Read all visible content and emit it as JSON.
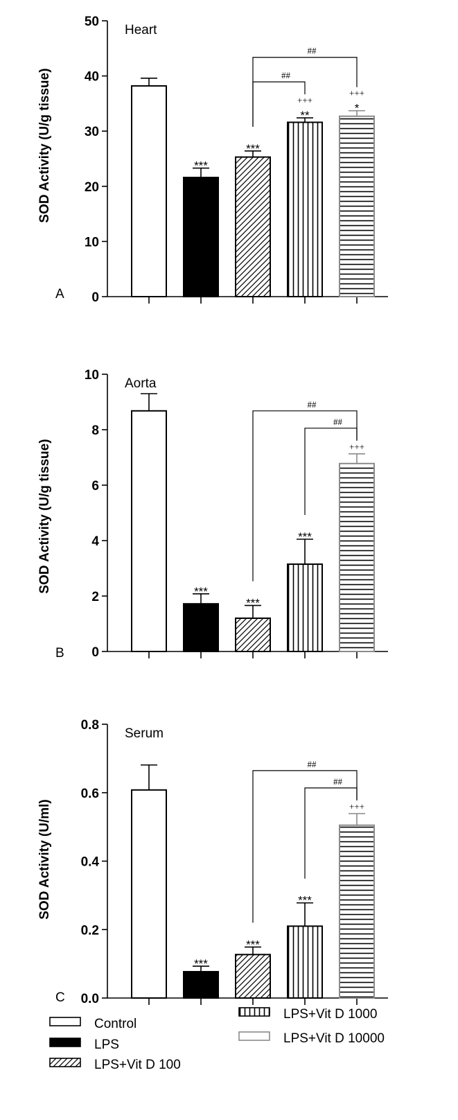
{
  "colors": {
    "axis": "#000000",
    "black_bar": "#000000",
    "gray_bar": "#8a8a8a"
  },
  "legend": [
    {
      "label": "Control",
      "pattern": "open"
    },
    {
      "label": "LPS",
      "pattern": "solid"
    },
    {
      "label": "LPS+Vit D 100",
      "pattern": "diagonal"
    },
    {
      "label": "LPS+Vit D 1000",
      "pattern": "vertical"
    },
    {
      "label": "LPS+Vit D 10000",
      "pattern": "horizontal-gray"
    }
  ],
  "chart_data": [
    {
      "type": "bar",
      "panel": "A",
      "title": "Heart",
      "ylabel": "SOD Activity (U/g tissue)",
      "ylim": [
        0,
        50
      ],
      "yticks": [
        "0",
        "10",
        "20",
        "30",
        "40",
        "50"
      ],
      "categories": [
        "Control",
        "LPS",
        "LPS+Vit D 100",
        "LPS+Vit D 1000",
        "LPS+Vit D 10000"
      ],
      "values": [
        38.2,
        21.6,
        25.3,
        31.6,
        32.7
      ],
      "errors": [
        1.4,
        1.7,
        1.1,
        0.8,
        1.0
      ],
      "annotations": [
        {
          "bar": 1,
          "lines": [
            "***"
          ]
        },
        {
          "bar": 2,
          "lines": [
            "***"
          ]
        },
        {
          "bar": 3,
          "lines": [
            "+++",
            "**"
          ]
        },
        {
          "bar": 4,
          "lines": [
            "+++",
            "*"
          ]
        }
      ],
      "brackets": [
        {
          "from": 2,
          "to": 3,
          "label": "##"
        },
        {
          "from": 2,
          "to": 4,
          "label": "##"
        }
      ]
    },
    {
      "type": "bar",
      "panel": "B",
      "title": "Aorta",
      "ylabel": "SOD Activity (U/g tissue)",
      "ylim": [
        0,
        10
      ],
      "yticks": [
        "0",
        "2",
        "4",
        "6",
        "8",
        "10"
      ],
      "categories": [
        "Control",
        "LPS",
        "LPS+Vit D 100",
        "LPS+Vit D 1000",
        "LPS+Vit D 10000"
      ],
      "values": [
        8.68,
        1.72,
        1.2,
        3.15,
        6.78
      ],
      "errors": [
        0.62,
        0.36,
        0.46,
        0.9,
        0.35
      ],
      "annotations": [
        {
          "bar": 1,
          "lines": [
            "***"
          ]
        },
        {
          "bar": 2,
          "lines": [
            "***"
          ]
        },
        {
          "bar": 3,
          "lines": [
            "***"
          ]
        },
        {
          "bar": 4,
          "lines": [
            "+++"
          ]
        }
      ],
      "brackets": [
        {
          "from": 3,
          "to": 4,
          "label": "##"
        },
        {
          "from": 2,
          "to": 4,
          "label": "##"
        }
      ]
    },
    {
      "type": "bar",
      "panel": "C",
      "title": "Serum",
      "ylabel": "SOD Activity (U/ml)",
      "ylim": [
        0,
        0.8
      ],
      "yticks": [
        "0.0",
        "0.2",
        "0.4",
        "0.6",
        "0.8"
      ],
      "categories": [
        "Control",
        "LPS",
        "LPS+Vit D 100",
        "LPS+Vit D 1000",
        "LPS+Vit D 10000"
      ],
      "values": [
        0.608,
        0.077,
        0.127,
        0.21,
        0.505
      ],
      "errors": [
        0.073,
        0.016,
        0.022,
        0.068,
        0.034
      ],
      "annotations": [
        {
          "bar": 1,
          "lines": [
            "***"
          ]
        },
        {
          "bar": 2,
          "lines": [
            "***"
          ]
        },
        {
          "bar": 3,
          "lines": [
            "***"
          ]
        },
        {
          "bar": 4,
          "lines": [
            "+++"
          ]
        }
      ],
      "brackets": [
        {
          "from": 3,
          "to": 4,
          "label": "##"
        },
        {
          "from": 2,
          "to": 4,
          "label": "##"
        }
      ]
    }
  ]
}
